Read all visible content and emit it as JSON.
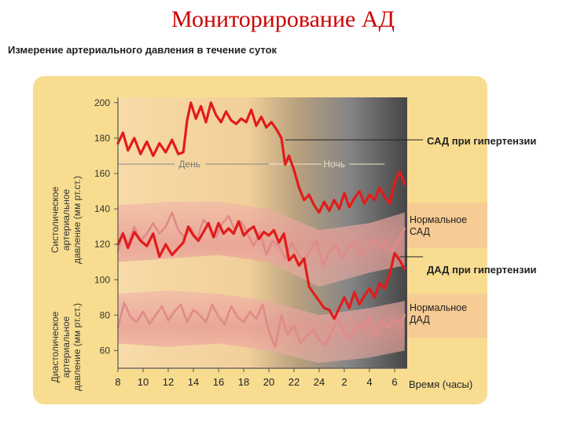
{
  "title": "Мониторирование АД",
  "subtitle": "Измерение артериального давления в течение суток",
  "colors": {
    "panel": "#f8dd90",
    "hyper": "#e31b1b",
    "normal": "#e08a8a",
    "band": "#efb4a8",
    "day_bg": "#f7d9a6",
    "night_bg": "#4a4a4a"
  },
  "chart_data": {
    "type": "line",
    "title": "Измерение артериального давления в течение суток",
    "xlabel": "Время (часы)",
    "ylabel_systolic": [
      "Систолическое",
      "артериальное",
      "давление (мм рт.ст.)"
    ],
    "ylabel_diastolic": [
      "Диастолическое",
      "артериальное",
      "давление (мм рт.ст.)"
    ],
    "x_ticks": [
      "8",
      "10",
      "12",
      "14",
      "16",
      "18",
      "20",
      "22",
      "24",
      "2",
      "4",
      "6"
    ],
    "y_ticks": [
      "200",
      "180",
      "160",
      "140",
      "120",
      "100",
      "80",
      "60"
    ],
    "ylim": [
      50,
      203
    ],
    "x_hours": [
      8,
      10,
      12,
      14,
      16,
      18,
      20,
      22,
      24,
      26,
      28,
      30
    ],
    "period_labels": {
      "day": "День",
      "night": "Ночь"
    },
    "series": [
      {
        "name": "САД при гипертензии",
        "x": [
          8.0,
          8.4,
          8.8,
          9.3,
          9.8,
          10.3,
          10.8,
          11.3,
          11.8,
          12.3,
          12.8,
          13.2,
          13.5,
          13.8,
          14.2,
          14.6,
          15.0,
          15.4,
          15.8,
          16.2,
          16.6,
          17.0,
          17.4,
          17.8,
          18.2,
          18.6,
          19.0,
          19.4,
          19.8,
          20.2,
          20.6,
          21.0,
          21.3,
          21.6,
          22.0,
          22.4,
          22.8,
          23.2,
          23.6,
          24.0,
          24.4,
          24.8,
          25.2,
          25.6,
          26.0,
          26.4,
          26.8,
          27.2,
          27.6,
          28.0,
          28.4,
          28.8,
          29.2,
          29.6,
          30.0,
          30.4,
          30.8
        ],
        "values": [
          177,
          183,
          173,
          180,
          171,
          178,
          170,
          177,
          172,
          179,
          171,
          172,
          190,
          200,
          191,
          198,
          189,
          200,
          193,
          189,
          195,
          190,
          188,
          191,
          189,
          196,
          187,
          192,
          186,
          189,
          185,
          180,
          165,
          170,
          162,
          152,
          145,
          148,
          142,
          138,
          144,
          139,
          145,
          140,
          149,
          141,
          146,
          150,
          143,
          148,
          145,
          152,
          147,
          143,
          155,
          161,
          154
        ]
      },
      {
        "name": "Нормальное САД",
        "x": [
          8.0,
          8.4,
          8.8,
          9.3,
          9.8,
          10.3,
          10.8,
          11.3,
          11.8,
          12.3,
          12.8,
          13.3,
          13.8,
          14.3,
          14.8,
          15.3,
          15.8,
          16.3,
          16.8,
          17.3,
          17.8,
          18.3,
          18.8,
          19.3,
          19.8,
          20.3,
          20.8,
          21.3,
          21.8,
          22.3,
          22.8,
          23.3,
          23.8,
          24.3,
          24.8,
          25.3,
          25.8,
          26.3,
          26.8,
          27.3,
          27.8,
          28.3,
          28.8,
          29.3,
          29.8,
          30.3,
          30.8
        ],
        "values": [
          116,
          127,
          120,
          130,
          122,
          126,
          132,
          126,
          130,
          138,
          128,
          124,
          129,
          123,
          134,
          129,
          124,
          132,
          136,
          128,
          133,
          126,
          119,
          127,
          114,
          122,
          119,
          112,
          121,
          115,
          110,
          117,
          122,
          108,
          116,
          120,
          112,
          118,
          121,
          114,
          116,
          123,
          118,
          121,
          116,
          122,
          129
        ]
      },
      {
        "name": "ДАД при гипертензии",
        "x": [
          8.0,
          8.4,
          8.8,
          9.3,
          9.8,
          10.3,
          10.8,
          11.3,
          11.8,
          12.3,
          12.8,
          13.2,
          13.6,
          14.0,
          14.4,
          14.8,
          15.2,
          15.6,
          16.0,
          16.4,
          16.8,
          17.2,
          17.6,
          18.0,
          18.4,
          18.8,
          19.2,
          19.6,
          20.0,
          20.4,
          20.8,
          21.2,
          21.6,
          22.0,
          22.4,
          22.8,
          23.2,
          23.6,
          24.0,
          24.4,
          24.8,
          25.2,
          25.6,
          26.0,
          26.4,
          26.8,
          27.2,
          27.6,
          28.0,
          28.4,
          28.8,
          29.2,
          29.6,
          30.0,
          30.4,
          30.8
        ],
        "values": [
          120,
          126,
          118,
          127,
          122,
          119,
          126,
          113,
          120,
          114,
          118,
          121,
          130,
          125,
          122,
          127,
          132,
          124,
          132,
          126,
          129,
          126,
          133,
          125,
          128,
          130,
          123,
          127,
          125,
          128,
          121,
          126,
          111,
          114,
          108,
          112,
          96,
          92,
          88,
          84,
          83,
          78,
          84,
          90,
          84,
          93,
          86,
          91,
          95,
          90,
          98,
          95,
          103,
          115,
          111,
          106
        ]
      },
      {
        "name": "Нормальное ДАД",
        "x": [
          8.0,
          8.5,
          9.0,
          9.5,
          10.0,
          10.5,
          11.0,
          11.5,
          12.0,
          12.5,
          13.0,
          13.5,
          14.0,
          14.5,
          15.0,
          15.5,
          16.0,
          16.5,
          17.0,
          17.5,
          18.0,
          18.5,
          19.0,
          19.5,
          20.0,
          20.5,
          21.0,
          21.5,
          22.0,
          22.5,
          23.0,
          23.5,
          24.0,
          24.5,
          25.0,
          25.5,
          26.0,
          26.5,
          27.0,
          27.5,
          28.0,
          28.5,
          29.0,
          29.5,
          30.0,
          30.5,
          30.8
        ],
        "values": [
          73,
          87,
          79,
          76,
          82,
          75,
          80,
          85,
          77,
          82,
          86,
          76,
          83,
          80,
          76,
          86,
          79,
          75,
          85,
          79,
          76,
          82,
          78,
          86,
          71,
          62,
          80,
          69,
          74,
          64,
          68,
          72,
          66,
          63,
          71,
          78,
          70,
          67,
          75,
          72,
          79,
          68,
          77,
          73,
          78,
          75,
          80
        ]
      }
    ],
    "normal_bands": [
      {
        "name": "Нормальное САД",
        "x": [
          8,
          12,
          16,
          20,
          24,
          28,
          30.8
        ],
        "lower": [
          110,
          112,
          114,
          110,
          96,
          104,
          108
        ],
        "upper": [
          142,
          144,
          144,
          140,
          128,
          132,
          138
        ]
      },
      {
        "name": "Нормальное ДАД",
        "x": [
          8,
          12,
          16,
          20,
          24,
          28,
          30.8
        ],
        "lower": [
          64,
          62,
          64,
          60,
          53,
          56,
          60
        ],
        "upper": [
          92,
          94,
          92,
          88,
          80,
          84,
          88
        ]
      }
    ],
    "legend": [
      {
        "text": "САД при гипертензии",
        "bold": true
      },
      {
        "text": "Нормальное\nСАД",
        "bold": false
      },
      {
        "text": "ДАД при гипертензии",
        "bold": true
      },
      {
        "text": "Нормальное\nДАД",
        "bold": false
      }
    ],
    "grid": false
  }
}
